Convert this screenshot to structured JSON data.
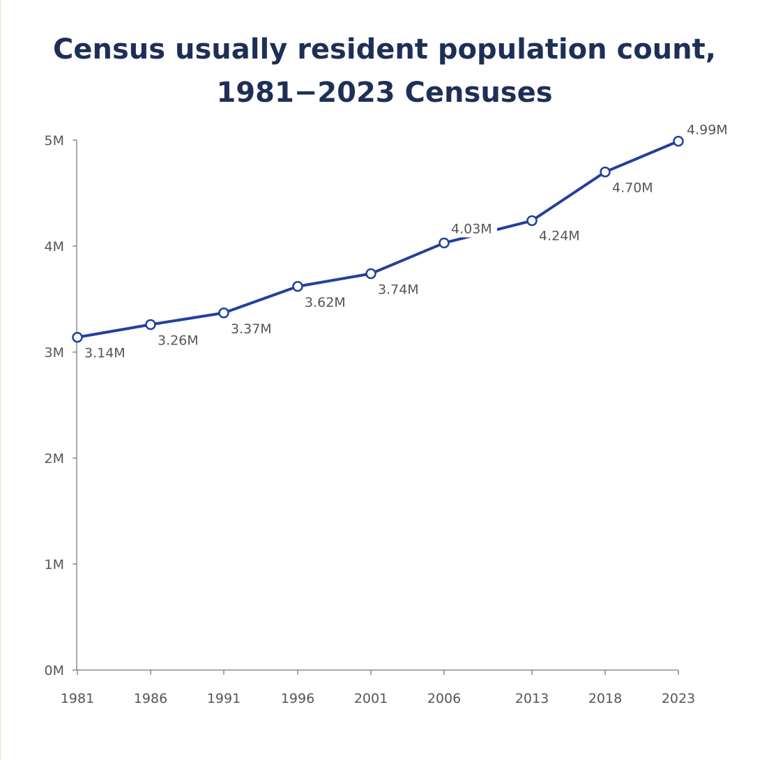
{
  "chart_data": {
    "type": "line",
    "title_lines": [
      "Census usually resident population count,",
      "1981−2023 Censuses"
    ],
    "title": "Census usually resident population count, 1981−2023 Censuses",
    "x": [
      "1981",
      "1986",
      "1991",
      "1996",
      "2001",
      "2006",
      "2013",
      "2018",
      "2023"
    ],
    "series": [
      {
        "values": [
          3.14,
          3.26,
          3.37,
          3.62,
          3.74,
          4.03,
          4.24,
          4.7,
          4.99
        ],
        "labels": [
          "3.14M",
          "3.26M",
          "3.37M",
          "3.62M",
          "3.74M",
          "4.03M",
          "4.24M",
          "4.70M",
          "4.99M"
        ]
      }
    ],
    "ylim": [
      0,
      5
    ],
    "yticks": [
      0,
      1,
      2,
      3,
      4,
      5
    ],
    "ytick_labels": [
      "0M",
      "1M",
      "2M",
      "3M",
      "4M",
      "5M"
    ],
    "xlabel": "",
    "ylabel": "",
    "grid": false,
    "legend": "none",
    "colors": {
      "line": "#23409a",
      "marker_fill": "#ffffff",
      "axis": "#555555",
      "title": "#1e2f57",
      "text": "#555555"
    }
  }
}
